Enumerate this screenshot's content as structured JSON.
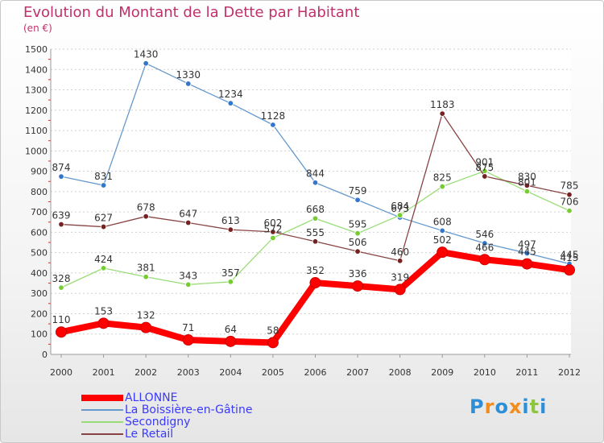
{
  "title": "Evolution du Montant de la Dette par Habitant",
  "subtitle": "(en €)",
  "chart_data": {
    "type": "line",
    "title": "Evolution du Montant de la Dette par Habitant",
    "subtitle": "(en €)",
    "xlabel": "",
    "ylabel": "",
    "x": [
      "2000",
      "2001",
      "2002",
      "2003",
      "2004",
      "2005",
      "2006",
      "2007",
      "2008",
      "2009",
      "2010",
      "2011",
      "2012"
    ],
    "ylim": [
      0,
      1500
    ],
    "yticks": [
      0,
      100,
      200,
      300,
      400,
      500,
      600,
      700,
      800,
      900,
      1000,
      1100,
      1200,
      1300,
      1400,
      1500
    ],
    "grid": "horizontal",
    "legend_position": "bottom",
    "series": [
      {
        "name": "ALLONNE",
        "color": "#ff0000",
        "bold": true,
        "values": [
          110,
          153,
          132,
          71,
          64,
          58,
          352,
          336,
          319,
          502,
          466,
          445,
          415
        ]
      },
      {
        "name": "La Boissière-en-Gâtine",
        "color": "#6699cc",
        "marker": "#3377cc",
        "values": [
          874,
          831,
          1430,
          1330,
          1234,
          1128,
          844,
          759,
          673,
          608,
          546,
          497,
          445
        ]
      },
      {
        "name": "Secondigny",
        "color": "#99dd77",
        "marker": "#77cc33",
        "values": [
          328,
          424,
          381,
          343,
          357,
          572,
          668,
          595,
          684,
          825,
          901,
          801,
          706
        ]
      },
      {
        "name": "Le Retail",
        "color": "#884444",
        "marker": "#772222",
        "values": [
          639,
          627,
          678,
          647,
          613,
          602,
          555,
          506,
          460,
          1183,
          875,
          830,
          785
        ]
      }
    ]
  },
  "logo": {
    "letters": [
      "P",
      "r",
      "o",
      "x",
      "i",
      "t",
      "i"
    ],
    "colors": [
      "#2d8fd8",
      "#f28c1c",
      "#2d8fd8",
      "#f28c1c",
      "#2d8fd8",
      "#8cc63f",
      "#2d8fd8"
    ]
  }
}
